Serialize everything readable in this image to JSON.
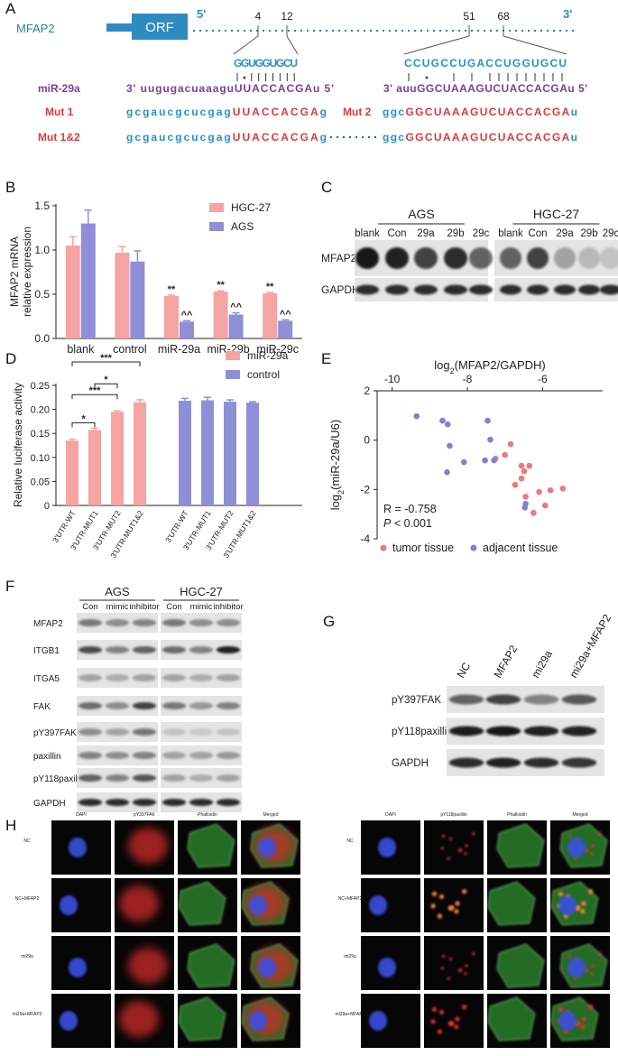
{
  "panel_a": {
    "letter": "A",
    "gene": "MFAP2",
    "orf": "ORF",
    "five_prime": "5'",
    "three_prime": "3'",
    "positions": [
      4,
      12,
      51,
      68
    ],
    "site_1": "GGUGGUGCU",
    "site_2": "CCUGCCUGACCUGGUGCU",
    "mirna_label": "miR-29a",
    "mirna_1": "3' uugugacuaaaguUUACCACGAu 5'",
    "mirna_2": "3' auuGGCUAAAGUCUACCACGAu 5'",
    "mut_1": {
      "label": "Mut 1",
      "sequence": [
        "gcgaucgcucgag",
        "UUACCACGA",
        "g"
      ]
    },
    "mut_2": {
      "label": "Mut 2",
      "sequence": [
        "ggc",
        "GGCUAAAGUCUACCACGA",
        "u"
      ]
    },
    "mut_1_2": {
      "label": "Mut 1&2",
      "sequence_1": [
        "gcgaucgcucgag",
        "UUACCACGA",
        "g"
      ],
      "sequence_2": [
        "ggc",
        "GGCUAAAGUCUACCACGA",
        "u"
      ]
    }
  },
  "chart_data": [
    {
      "panel": "B",
      "type": "bar",
      "ylabel": [
        "MFAP2 mRNA",
        "relative expression"
      ],
      "categories": [
        "blank",
        "control",
        "miR-29a",
        "miR-29b",
        "miR-29c"
      ],
      "series": [
        {
          "name": "HGC-27",
          "color": "#f6a3a3",
          "values": [
            1.05,
            0.97,
            0.48,
            0.53,
            0.51
          ],
          "errors": [
            0.1,
            0.07,
            0.01,
            0.01,
            0.01
          ],
          "marks": [
            null,
            null,
            "**",
            "**",
            "**"
          ]
        },
        {
          "name": "AGS",
          "color": "#8f8fd8",
          "values": [
            1.3,
            0.87,
            0.19,
            0.27,
            0.2
          ],
          "errors": [
            0.15,
            0.12,
            0.01,
            0.02,
            0.01
          ],
          "marks": [
            null,
            null,
            "^^",
            "^^",
            "^^"
          ]
        }
      ],
      "ylim": [
        0,
        1.5
      ],
      "yticks": [
        {
          "value": 0,
          "label": "0.0"
        },
        0.5,
        {
          "value": 1,
          "label": "1.0"
        },
        1.5
      ],
      "legend": "upper right"
    },
    {
      "panel": "D",
      "type": "bar",
      "ylabel": [
        "Relative luciferase activity"
      ],
      "categories": [
        "3'UTR-WT",
        "3'UTR-MUT1",
        "3'UTR-MUT2",
        "3'UTR-MUT1&2",
        "3'UTR-WT",
        "3'UTR-MUT1",
        "3'UTR-MUT2",
        "3'UTR-MUT1&2"
      ],
      "series": [
        {
          "name": "miR-29a",
          "color": "#f6a3a3",
          "values": [
            0.135,
            0.157,
            0.195,
            0.215,
            null,
            null,
            null,
            null
          ],
          "errors": [
            0.003,
            0.004,
            0.002,
            0.005,
            null,
            null,
            null,
            null
          ]
        },
        {
          "name": "control",
          "color": "#8f8fd8",
          "values": [
            null,
            null,
            null,
            null,
            0.218,
            0.219,
            0.216,
            0.214
          ],
          "errors": [
            null,
            null,
            null,
            null,
            0.005,
            0.006,
            0.004,
            0.002
          ]
        }
      ],
      "comparisons": [
        {
          "from": 0,
          "to": 1,
          "label": "*"
        },
        {
          "from": 0,
          "to": 2,
          "label": "***"
        },
        {
          "from": 1,
          "to": 2,
          "label": "*"
        },
        {
          "from": 0,
          "to": 3,
          "label": "***"
        }
      ],
      "ylim": [
        0,
        0.25
      ],
      "yticks": [
        0,
        0.05,
        {
          "value": 0.1,
          "label": "0.10"
        },
        0.15,
        {
          "value": 0.2,
          "label": "0.20"
        },
        0.25
      ],
      "legend": "upper right"
    },
    {
      "panel": "E",
      "type": "scatter",
      "xlabel": "log2(MFAP2/GAPDH)",
      "ylabel": "log2(miR-29a/U6)",
      "xlim": [
        -10.4,
        -4.4
      ],
      "xticks": [
        -10,
        -8,
        -6
      ],
      "ylim": [
        -4,
        2
      ],
      "yticks": [
        2,
        0,
        -2,
        -4
      ],
      "annotations": [
        "R = -0.758",
        "P < 0.001"
      ],
      "series": [
        {
          "name": "tumor tissue",
          "color": "#f07878",
          "x": [
            -6.85,
            -7.25,
            -6.56,
            -6.35,
            -6.49,
            -6.56,
            -6.73,
            -6.45,
            -6.09,
            -5.79,
            -5.46,
            -5.93,
            -6.24,
            -7.0
          ],
          "y": [
            -0.16,
            -0.75,
            -1.04,
            -1.04,
            -1.26,
            -1.55,
            -1.81,
            -2.29,
            -2.1,
            -2.03,
            -1.96,
            -2.65,
            -2.95,
            -0.6
          ]
        },
        {
          "name": "adjacent tissue",
          "color": "#8080d4",
          "x": [
            -9.35,
            -8.66,
            -8.52,
            -8.47,
            -8.09,
            -8.54,
            -7.46,
            -7.39,
            -7.53,
            -7.29,
            -6.45,
            -6.47
          ],
          "y": [
            0.97,
            0.79,
            0.64,
            -0.23,
            -0.89,
            -1.3,
            0.79,
            0.02,
            -0.82,
            -0.82,
            -2.58,
            -2.73
          ]
        }
      ],
      "legend": "bottom"
    }
  ],
  "panel_c": {
    "letter": "C",
    "groups": [
      {
        "name": "AGS",
        "lanes": [
          "blank",
          "Con",
          "29a",
          "29b",
          "29c"
        ]
      },
      {
        "name": "HGC-27",
        "lanes": [
          "blank",
          "Con",
          "29a",
          "29b",
          "29c"
        ]
      }
    ],
    "rows": [
      "MFAP2",
      "GAPDH"
    ]
  },
  "panel_f": {
    "letter": "F",
    "groups": [
      {
        "name": "AGS",
        "lanes": [
          "Con",
          "mimic",
          "inhibitor"
        ]
      },
      {
        "name": "HGC-27",
        "lanes": [
          "Con",
          "mimic",
          "inhibitor"
        ]
      }
    ],
    "rows": [
      "MFAP2",
      "ITGB1",
      "ITGA5",
      "FAK",
      "pY397FAK",
      "paxillin",
      "pY118paxillin",
      "GAPDH"
    ]
  },
  "panel_g": {
    "letter": "G",
    "lanes": [
      "NC",
      "MFAP2",
      "mi29a",
      "mi29a+MFAP2"
    ],
    "rows": [
      "pY397FAK",
      "pY118paxillin",
      "GAPDH"
    ]
  },
  "panel_h": {
    "letter": "H",
    "grids": [
      {
        "columns": [
          "DAPI",
          "pY397FAK",
          "Phalloidin",
          "Merged"
        ],
        "rows": [
          "NC",
          "NC+MFAP2",
          "mi29a",
          "mi29a+MFAP2"
        ]
      },
      {
        "columns": [
          "DAPI",
          "pY118paxillin",
          "Phalloidin",
          "Merged"
        ],
        "rows": [
          "NC",
          "NC+MFAP2",
          "mi29a",
          "mi29a+MFAP2"
        ]
      }
    ]
  }
}
